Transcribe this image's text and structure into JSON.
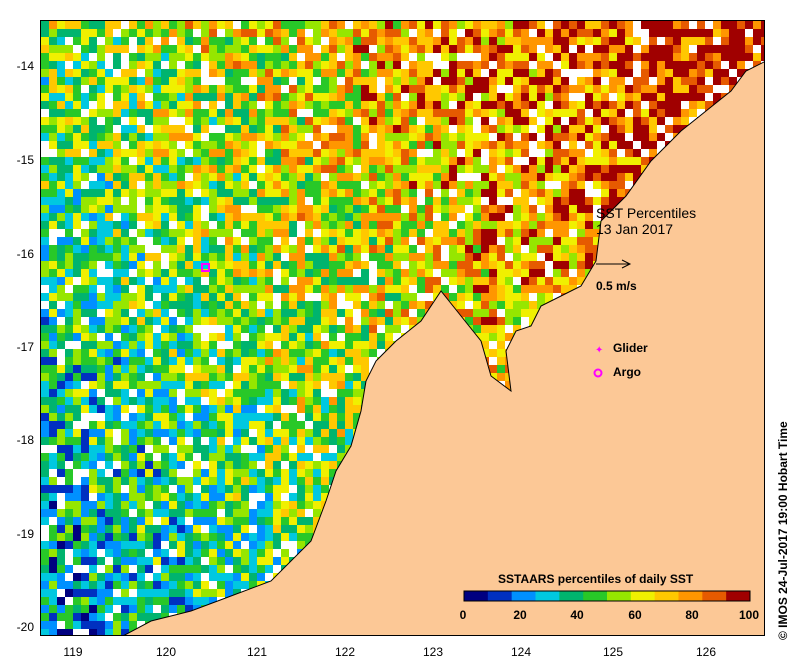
{
  "map": {
    "lon_ticks": [
      "119",
      "120",
      "121",
      "122",
      "123",
      "124",
      "125",
      "126"
    ],
    "lat_ticks": [
      "-14",
      "-15",
      "-16",
      "-17",
      "-18",
      "-19",
      "-20"
    ],
    "land_color": "#fcc896",
    "sea_nodata_color": "#ffffff"
  },
  "annotation": {
    "title_line1": "SST Percentiles",
    "title_line2": "13 Jan 2017",
    "vector_scale_label": "0.5 m/s",
    "glider_label": "Glider",
    "argo_label": "Argo"
  },
  "colorbar": {
    "title": "SSTAARS percentiles of daily SST",
    "tick_labels": [
      "0",
      "20",
      "40",
      "60",
      "80",
      "100"
    ],
    "colors": [
      "#000080",
      "#0030c0",
      "#0090ff",
      "#00c8e0",
      "#00b46e",
      "#28c828",
      "#96e600",
      "#f0f000",
      "#ffc800",
      "#ff9600",
      "#e65a00",
      "#a00000"
    ]
  },
  "markers": {
    "glider_color": "#ff00ff",
    "argo_color": "#ff00ff"
  },
  "credit": "© IMOS 24-Jul-2017 19:00 Hobart Time"
}
